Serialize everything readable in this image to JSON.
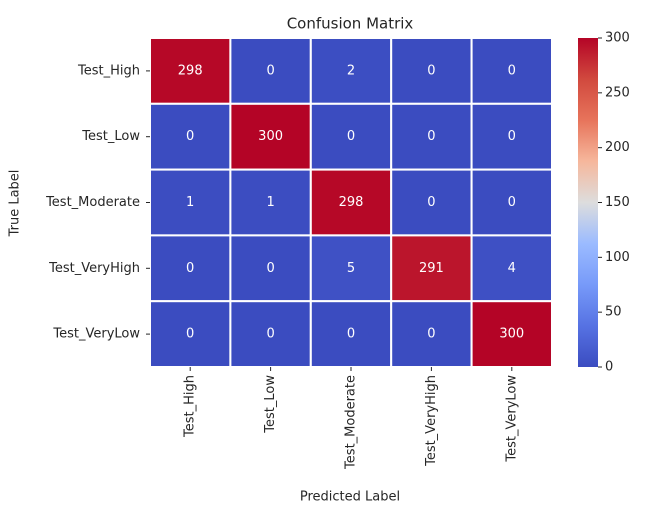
{
  "chart_data": {
    "type": "heatmap",
    "title": "Confusion Matrix",
    "xlabel": "Predicted Label",
    "ylabel": "True Label",
    "x_categories": [
      "Test_High",
      "Test_Low",
      "Test_Moderate",
      "Test_VeryHigh",
      "Test_VeryLow"
    ],
    "y_categories": [
      "Test_High",
      "Test_Low",
      "Test_Moderate",
      "Test_VeryHigh",
      "Test_VeryLow"
    ],
    "values": [
      [
        298,
        0,
        2,
        0,
        0
      ],
      [
        0,
        300,
        0,
        0,
        0
      ],
      [
        1,
        1,
        298,
        0,
        0
      ],
      [
        0,
        0,
        5,
        291,
        4
      ],
      [
        0,
        0,
        0,
        0,
        300
      ]
    ],
    "colormap": "coolwarm",
    "annotation_color": "#ffffff",
    "cell_border_color": "#ffffff",
    "clim": [
      0,
      300
    ],
    "cticks": [
      0,
      50,
      100,
      150,
      200,
      250,
      300
    ]
  }
}
